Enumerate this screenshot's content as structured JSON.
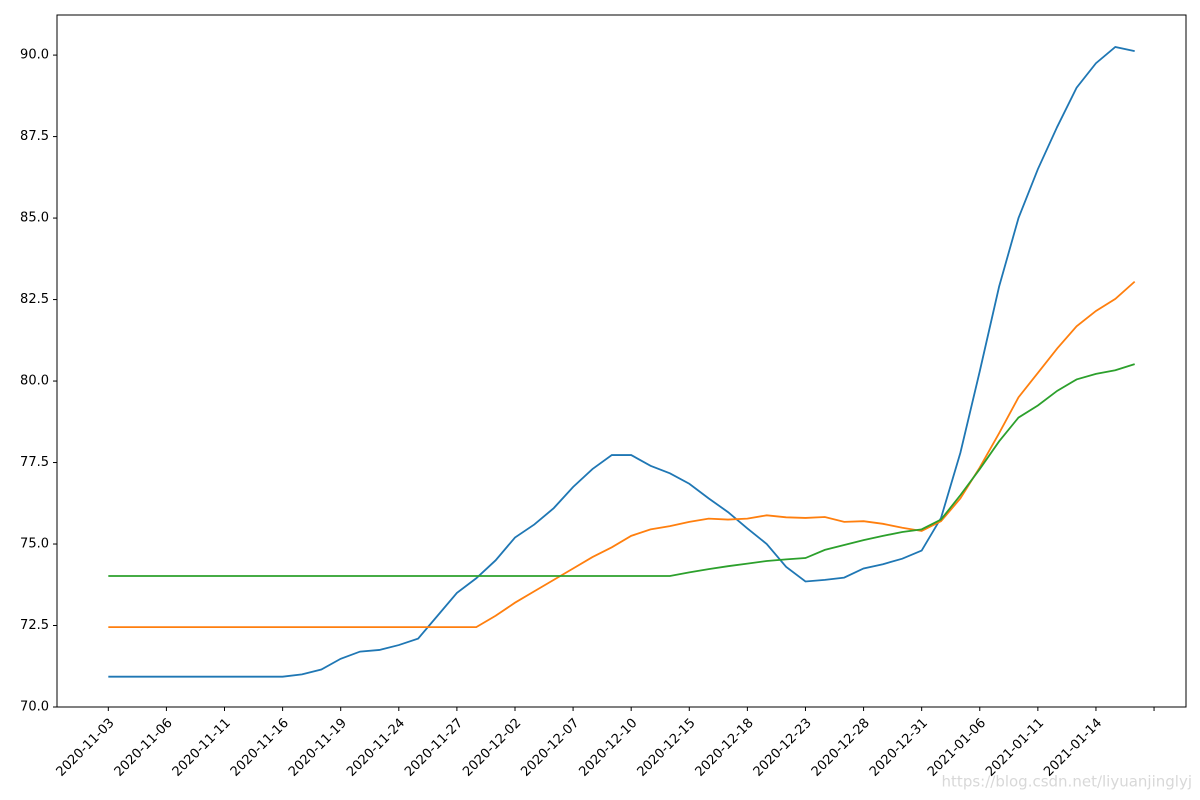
{
  "chart_data": {
    "type": "line",
    "watermark": "https://blog.csdn.net/liyuanjinglyj",
    "categories": [
      "2020-11-03",
      null,
      null,
      "2020-11-06",
      null,
      null,
      "2020-11-11",
      null,
      null,
      "2020-11-16",
      null,
      null,
      "2020-11-19",
      null,
      null,
      "2020-11-24",
      null,
      null,
      "2020-11-27",
      null,
      null,
      "2020-12-02",
      null,
      null,
      "2020-12-07",
      null,
      null,
      "2020-12-10",
      null,
      null,
      "2020-12-15",
      null,
      null,
      "2020-12-18",
      null,
      null,
      "2020-12-23",
      null,
      null,
      "2020-12-28",
      null,
      null,
      "2020-12-31",
      null,
      null,
      "2021-01-06",
      null,
      null,
      "2021-01-11",
      null,
      null,
      "2021-01-14",
      null,
      null
    ],
    "xlim": [
      -2.65,
      55.65
    ],
    "xticks": [
      0,
      3,
      6,
      9,
      12,
      15,
      18,
      21,
      24,
      27,
      30,
      33,
      36,
      39,
      42,
      45,
      48,
      51,
      54
    ],
    "ylim": [
      70.0,
      91.23
    ],
    "yticks": [
      {
        "value": 70.0,
        "label": "70.0"
      },
      {
        "value": 72.5,
        "label": "72.5"
      },
      {
        "value": 75.0,
        "label": "75.0"
      },
      {
        "value": 77.5,
        "label": "77.5"
      },
      {
        "value": 80.0,
        "label": "80.0"
      },
      {
        "value": 82.5,
        "label": "82.5"
      },
      {
        "value": 85.0,
        "label": "85.0"
      },
      {
        "value": 87.5,
        "label": "87.5"
      },
      {
        "value": 90.0,
        "label": "90.0"
      }
    ],
    "grid": false,
    "series": [
      {
        "color": "#1f77b4",
        "values": [
          70.93,
          70.93,
          70.93,
          70.93,
          70.93,
          70.93,
          70.93,
          70.93,
          70.93,
          70.93,
          71.0,
          71.15,
          71.48,
          71.7,
          71.75,
          71.9,
          72.1,
          72.8,
          73.5,
          73.95,
          74.5,
          75.2,
          75.6,
          76.1,
          76.75,
          77.3,
          77.73,
          77.73,
          77.4,
          77.17,
          76.85,
          76.4,
          75.98,
          75.48,
          75.0,
          74.3,
          73.85,
          73.9,
          73.97,
          74.25,
          74.38,
          74.55,
          74.8,
          75.8,
          77.8,
          80.3,
          82.9,
          85.0,
          86.5,
          87.8,
          89.0,
          89.75,
          90.25,
          90.12
        ]
      },
      {
        "color": "#ff7f0e",
        "values": [
          72.45,
          72.45,
          72.45,
          72.45,
          72.45,
          72.45,
          72.45,
          72.45,
          72.45,
          72.45,
          72.45,
          72.45,
          72.45,
          72.45,
          72.45,
          72.45,
          72.45,
          72.45,
          72.45,
          72.45,
          72.8,
          73.2,
          73.55,
          73.9,
          74.25,
          74.6,
          74.9,
          75.25,
          75.45,
          75.55,
          75.68,
          75.78,
          75.75,
          75.78,
          75.88,
          75.82,
          75.8,
          75.83,
          75.68,
          75.7,
          75.62,
          75.5,
          75.4,
          75.7,
          76.4,
          77.35,
          78.4,
          79.5,
          80.25,
          81.0,
          81.68,
          82.15,
          82.52,
          83.05
        ]
      },
      {
        "color": "#2ca02c",
        "values": [
          74.02,
          74.02,
          74.02,
          74.02,
          74.02,
          74.02,
          74.02,
          74.02,
          74.02,
          74.02,
          74.02,
          74.02,
          74.02,
          74.02,
          74.02,
          74.02,
          74.02,
          74.02,
          74.02,
          74.02,
          74.02,
          74.02,
          74.02,
          74.02,
          74.02,
          74.02,
          74.02,
          74.02,
          74.02,
          74.02,
          74.13,
          74.23,
          74.32,
          74.4,
          74.48,
          74.53,
          74.57,
          74.82,
          74.97,
          75.12,
          75.25,
          75.37,
          75.45,
          75.75,
          76.5,
          77.3,
          78.15,
          78.88,
          79.25,
          79.7,
          80.05,
          80.22,
          80.33,
          80.52
        ]
      }
    ]
  }
}
